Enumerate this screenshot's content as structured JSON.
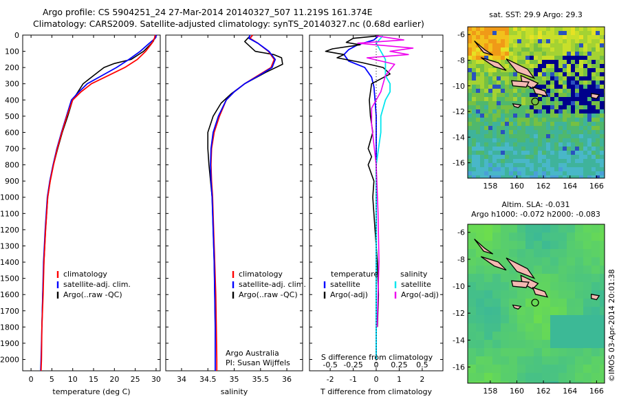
{
  "header": {
    "line1": "Argo profile: CS 5904251_24 27-Mar-2014 20140327_507 11.219S 161.374E",
    "line2": "Climatology: CARS2009. Satellite-adjusted climatology: synTS_20140327.nc (0.68d earlier)"
  },
  "credit": "©IMOS 03-Apr-2014 20:01:38",
  "colors": {
    "climatology": "#ff0000",
    "satellite": "#0000ff",
    "argo": "#000000",
    "sal_satellite": "#00e5ee",
    "sal_argo": "#ee00ee",
    "land": "#f4b9b2"
  },
  "chart_data": [
    {
      "id": "temperature",
      "type": "line",
      "xlabel": "temperature (deg C)",
      "ylabel": "",
      "xlim": [
        -2,
        31
      ],
      "ylim": [
        2070,
        0
      ],
      "xticks": [
        0,
        5,
        10,
        15,
        20,
        25,
        30
      ],
      "yticks": [
        0,
        100,
        200,
        300,
        400,
        500,
        600,
        700,
        800,
        900,
        1000,
        1100,
        1200,
        1300,
        1400,
        1500,
        1600,
        1700,
        1800,
        1900,
        2000
      ],
      "legend": {
        "position": "lower-center",
        "entries": [
          "climatology",
          "satellite-adj. clim.",
          "Argo(..raw -QC)"
        ]
      },
      "series": [
        {
          "name": "climatology",
          "color": "#ff0000",
          "x": [
            29.8,
            29.6,
            29.0,
            27.5,
            25.5,
            22.5,
            18.5,
            14.5,
            12.0,
            10.0,
            8.6,
            7.4,
            6.3,
            5.4,
            4.6,
            4.0,
            3.5,
            3.1,
            2.9,
            2.6,
            2.5,
            2.4
          ],
          "y": [
            0,
            20,
            50,
            100,
            150,
            200,
            250,
            300,
            350,
            400,
            500,
            600,
            700,
            800,
            900,
            1000,
            1200,
            1400,
            1600,
            1800,
            2000,
            2070
          ]
        },
        {
          "name": "satellite-adj. clim.",
          "x": [
            30.1,
            29.8,
            28.4,
            26.2,
            23.5,
            20.5,
            17.0,
            13.5,
            11.5,
            9.7,
            8.5,
            7.3,
            6.2,
            5.3,
            4.5,
            3.9,
            3.4,
            3.0,
            2.8,
            2.6,
            2.4,
            2.3
          ],
          "y": [
            0,
            20,
            50,
            100,
            150,
            200,
            250,
            300,
            350,
            400,
            500,
            600,
            700,
            800,
            900,
            1000,
            1200,
            1400,
            1600,
            1800,
            2000,
            2070
          ]
        },
        {
          "name": "Argo(..raw -QC)",
          "x": [
            29.9,
            29.3,
            27.0,
            24.0,
            20.0,
            17.5,
            15.0,
            12.5,
            11.0,
            10.0,
            8.8,
            7.5,
            6.4,
            5.4,
            4.6,
            4.0,
            3.5,
            3.1,
            2.8,
            2.6
          ],
          "y": [
            5,
            40,
            100,
            150,
            175,
            200,
            250,
            300,
            360,
            400,
            500,
            600,
            700,
            800,
            900,
            1000,
            1200,
            1400,
            1600,
            1800
          ]
        }
      ]
    },
    {
      "id": "salinity",
      "type": "line",
      "xlabel": "salinity",
      "xlim": [
        33.7,
        36.3
      ],
      "ylim": [
        2070,
        0
      ],
      "xticks": [
        34,
        34.5,
        35,
        35.5,
        36
      ],
      "legend": {
        "position": "lower-center",
        "entries": [
          "climatology",
          "satellite-adj. clim.",
          "Argo(..raw -QC)"
        ]
      },
      "annotation": [
        "Argo Australia",
        "PI: Susan Wijffels"
      ],
      "series": [
        {
          "name": "climatology",
          "x": [
            35.35,
            35.3,
            35.45,
            35.65,
            35.76,
            35.7,
            35.45,
            35.2,
            35.0,
            34.85,
            34.72,
            34.62,
            34.57,
            34.56,
            34.57,
            34.59,
            34.61,
            34.63,
            34.65,
            34.66,
            34.67,
            34.67
          ],
          "y": [
            0,
            20,
            50,
            100,
            150,
            200,
            250,
            300,
            350,
            400,
            500,
            600,
            700,
            800,
            900,
            1000,
            1200,
            1400,
            1600,
            1800,
            2000,
            2070
          ]
        },
        {
          "name": "satellite-adj. clim.",
          "x": [
            35.3,
            35.28,
            35.45,
            35.66,
            35.78,
            35.72,
            35.47,
            35.2,
            35.0,
            34.85,
            34.7,
            34.6,
            34.56,
            34.55,
            34.56,
            34.58,
            34.6,
            34.62,
            34.63,
            34.64,
            34.64,
            34.64
          ],
          "y": [
            0,
            20,
            50,
            100,
            150,
            200,
            250,
            300,
            350,
            400,
            500,
            600,
            700,
            800,
            900,
            1000,
            1200,
            1400,
            1600,
            1800,
            2000,
            2070
          ]
        },
        {
          "name": "Argo(..raw -QC)",
          "x": [
            35.3,
            35.2,
            35.4,
            35.75,
            35.9,
            35.92,
            35.6,
            35.2,
            34.95,
            34.75,
            34.6,
            34.5,
            34.5,
            34.52,
            34.55,
            34.58,
            34.6,
            34.62,
            34.63,
            34.64
          ],
          "y": [
            5,
            40,
            100,
            120,
            140,
            180,
            230,
            300,
            360,
            420,
            500,
            600,
            700,
            800,
            900,
            1000,
            1200,
            1400,
            1600,
            1800
          ]
        }
      ]
    },
    {
      "id": "difference",
      "type": "line",
      "xlabel": "T difference from climatology",
      "x2label": "S difference from climatology",
      "xlim": [
        -2.9,
        2.9
      ],
      "ylim": [
        2070,
        0
      ],
      "xticks": [
        "-2",
        "-1",
        "0",
        "1",
        "2"
      ],
      "x2ticks": [
        "-0.5",
        "-0.25",
        "0",
        "0.25",
        "0.5"
      ],
      "legend": {
        "position": "lower-center",
        "temperature": [
          "temperature",
          "satellite",
          "Argo(-adj)"
        ],
        "salinity": [
          "salinity",
          "satellite",
          "Argo(-adj)"
        ]
      },
      "series": [
        {
          "name": "T satellite",
          "x": [
            0.1,
            -0.1,
            -0.8,
            -1.2,
            -1.4,
            -1.2,
            -0.5,
            -0.2,
            -0.1,
            -0.05,
            0,
            0,
            0,
            0,
            0,
            0,
            0,
            0
          ],
          "y": [
            5,
            30,
            60,
            90,
            120,
            160,
            200,
            260,
            320,
            400,
            500,
            600,
            800,
            1000,
            1200,
            1600,
            1800,
            2000
          ]
        },
        {
          "name": "T Argo(-adj)",
          "x": [
            0.1,
            -1.0,
            -1.3,
            -0.7,
            -1.9,
            -2.2,
            -1.4,
            -1.7,
            -0.6,
            0.3,
            0.6,
            -0.2,
            -0.3,
            -0.25,
            -0.15,
            -0.35,
            -0.2,
            -0.35,
            -0.1,
            -0.15,
            -0.05,
            0.05,
            0.1,
            0.05
          ],
          "y": [
            5,
            20,
            45,
            60,
            85,
            100,
            120,
            140,
            170,
            200,
            240,
            300,
            400,
            500,
            600,
            700,
            750,
            800,
            900,
            1000,
            1200,
            1400,
            1600,
            1800
          ]
        },
        {
          "name": "S satellite",
          "x": [
            0.07,
            0.0,
            0.05,
            0.1,
            0.1,
            0.1,
            0.15,
            0.15,
            0.1,
            0.05,
            0.05,
            0.0,
            0.0,
            0.0
          ],
          "y": [
            5,
            50,
            100,
            150,
            200,
            250,
            300,
            350,
            400,
            500,
            600,
            800,
            1200,
            2000
          ]
        },
        {
          "name": "S Argo(-adj)",
          "x": [
            0.0,
            0.3,
            -0.2,
            0.4,
            0.15,
            0.35,
            -0.1,
            0.2,
            0.1,
            0.05,
            -0.05,
            -0.05,
            0.0,
            0.02,
            0.03,
            0.01
          ],
          "y": [
            5,
            30,
            50,
            80,
            100,
            120,
            140,
            180,
            250,
            350,
            450,
            550,
            800,
            1100,
            1400,
            1800
          ]
        }
      ]
    },
    {
      "id": "sst-map",
      "type": "heatmap",
      "title": "sat. SST: 29.9  Argo: 29.3",
      "xticks": [
        158,
        160,
        162,
        164,
        166
      ],
      "yticks": [
        -6,
        -8,
        -10,
        -12,
        -14,
        -16
      ],
      "xlim": [
        156.3,
        166.6
      ],
      "ylim": [
        -17.2,
        -5.4
      ],
      "marker": {
        "lon": 161.374,
        "lat": -11.219
      }
    },
    {
      "id": "sla-map",
      "type": "heatmap",
      "title": [
        "Altim. SLA: -0.031",
        "Argo h1000: -0.072  h2000: -0.083"
      ],
      "xticks": [
        158,
        160,
        162,
        164,
        166
      ],
      "yticks": [
        -6,
        -8,
        -10,
        -12,
        -14,
        -16
      ],
      "xlim": [
        156.3,
        166.6
      ],
      "ylim": [
        -17.2,
        -5.4
      ],
      "marker": {
        "lon": 161.374,
        "lat": -11.219
      }
    }
  ]
}
